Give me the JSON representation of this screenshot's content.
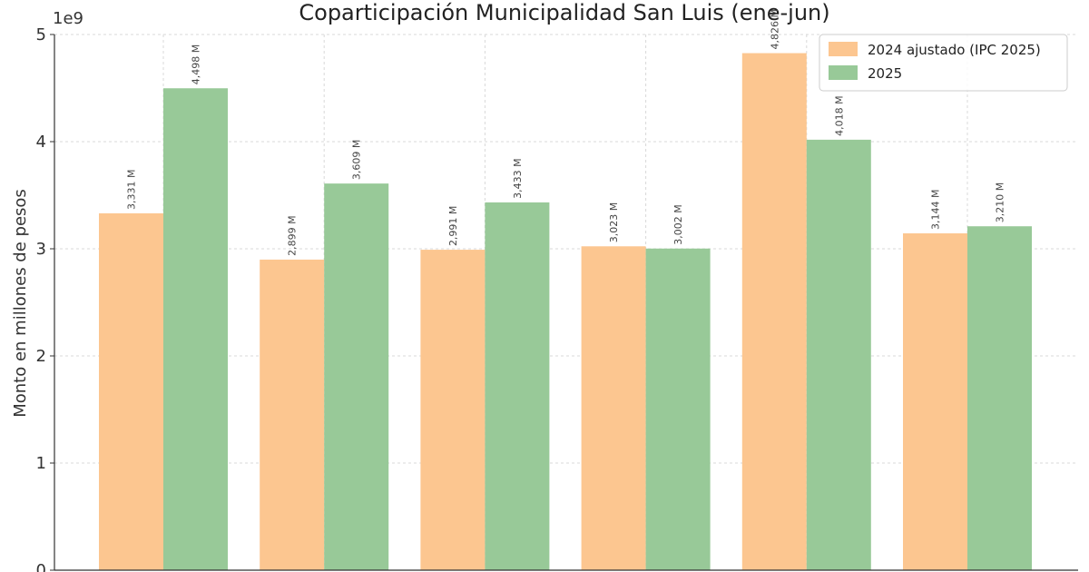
{
  "chart_data": {
    "type": "bar",
    "title": "Coparticipación Municipalidad San Luis (ene-jun)",
    "ylabel": "Monto en millones de pesos",
    "xlabel": "",
    "y_multiplier_label": "1e9",
    "ylim": [
      0,
      5000000000
    ],
    "yticks": [
      0,
      1000000000,
      2000000000,
      3000000000,
      4000000000,
      5000000000
    ],
    "ytick_labels": [
      "0",
      "1",
      "2",
      "3",
      "4",
      "5"
    ],
    "grid": true,
    "legend_placement": "top-right",
    "categories": [
      "",
      "",
      "",
      "",
      "",
      ""
    ],
    "series": [
      {
        "name": "2024 ajustado (IPC 2025)",
        "color": "#fcc690",
        "values": [
          3331000000,
          2899000000,
          2991000000,
          3023000000,
          4826000000,
          3144000000
        ],
        "labels": [
          "3,331 M",
          "2,899 M",
          "2,991 M",
          "3,023 M",
          "4,826 M",
          "3,144 M"
        ]
      },
      {
        "name": "2025",
        "color": "#98c998",
        "values": [
          4498000000,
          3609000000,
          3433000000,
          3002000000,
          4018000000,
          3210000000
        ],
        "labels": [
          "4,498 M",
          "3,609 M",
          "3,433 M",
          "3,002 M",
          "4,018 M",
          "3,210 M"
        ]
      }
    ]
  }
}
